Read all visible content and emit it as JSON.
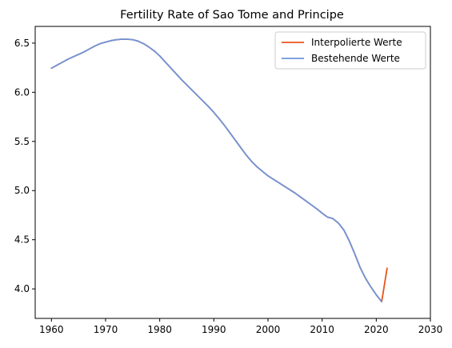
{
  "chart_data": {
    "type": "line",
    "title": "Fertility Rate of Sao Tome and Principe",
    "xlabel": "",
    "ylabel": "",
    "xlim": [
      1957.0,
      2030.0
    ],
    "ylim": [
      3.7,
      6.67
    ],
    "xticks": [
      1960,
      1970,
      1980,
      1990,
      2000,
      2010,
      2020,
      2030
    ],
    "yticks": [
      4.0,
      4.5,
      5.0,
      5.5,
      6.0,
      6.5
    ],
    "grid": false,
    "legend": {
      "position": "top-right",
      "entries": [
        "Interpolierte Werte",
        "Bestehende Werte"
      ]
    },
    "series": [
      {
        "name": "Interpolierte Werte",
        "color": "#e8541c",
        "x": [
          1960,
          1961,
          1962,
          1963,
          1964,
          1965,
          1966,
          1967,
          1968,
          1969,
          1970,
          1971,
          1972,
          1973,
          1974,
          1975,
          1976,
          1977,
          1978,
          1979,
          1980,
          1981,
          1982,
          1983,
          1984,
          1985,
          1986,
          1987,
          1988,
          1989,
          1990,
          1991,
          1992,
          1993,
          1994,
          1995,
          1996,
          1997,
          1998,
          1999,
          2000,
          2001,
          2002,
          2003,
          2004,
          2005,
          2006,
          2007,
          2008,
          2009,
          2010,
          2011,
          2012,
          2013,
          2014,
          2015,
          2016,
          2017,
          2018,
          2019,
          2020,
          2021,
          2022
        ],
        "y": [
          6.245,
          6.275,
          6.305,
          6.335,
          6.36,
          6.385,
          6.41,
          6.44,
          6.47,
          6.495,
          6.51,
          6.525,
          6.535,
          6.54,
          6.54,
          6.535,
          6.52,
          6.495,
          6.46,
          6.42,
          6.37,
          6.31,
          6.25,
          6.19,
          6.13,
          6.075,
          6.02,
          5.965,
          5.91,
          5.855,
          5.795,
          5.73,
          5.66,
          5.585,
          5.51,
          5.435,
          5.36,
          5.295,
          5.24,
          5.195,
          5.15,
          5.115,
          5.08,
          5.045,
          5.01,
          4.975,
          4.935,
          4.895,
          4.855,
          4.815,
          4.77,
          4.73,
          4.715,
          4.67,
          4.6,
          4.49,
          4.36,
          4.22,
          4.11,
          4.02,
          3.94,
          3.87,
          4.21
        ]
      },
      {
        "name": "Bestehende Werte",
        "color": "#6f95db",
        "x": [
          1960,
          1961,
          1962,
          1963,
          1964,
          1965,
          1966,
          1967,
          1968,
          1969,
          1970,
          1971,
          1972,
          1973,
          1974,
          1975,
          1976,
          1977,
          1978,
          1979,
          1980,
          1981,
          1982,
          1983,
          1984,
          1985,
          1986,
          1987,
          1988,
          1989,
          1990,
          1991,
          1992,
          1993,
          1994,
          1995,
          1996,
          1997,
          1998,
          1999,
          2000,
          2001,
          2002,
          2003,
          2004,
          2005,
          2006,
          2007,
          2008,
          2009,
          2010,
          2011,
          2012,
          2013,
          2014,
          2015,
          2016,
          2017,
          2018,
          2019,
          2020,
          2021
        ],
        "y": [
          6.245,
          6.275,
          6.305,
          6.335,
          6.36,
          6.385,
          6.41,
          6.44,
          6.47,
          6.495,
          6.51,
          6.525,
          6.535,
          6.54,
          6.54,
          6.535,
          6.52,
          6.495,
          6.46,
          6.42,
          6.37,
          6.31,
          6.25,
          6.19,
          6.13,
          6.075,
          6.02,
          5.965,
          5.91,
          5.855,
          5.795,
          5.73,
          5.66,
          5.585,
          5.51,
          5.435,
          5.36,
          5.295,
          5.24,
          5.195,
          5.15,
          5.115,
          5.08,
          5.045,
          5.01,
          4.975,
          4.935,
          4.895,
          4.855,
          4.815,
          4.77,
          4.73,
          4.715,
          4.67,
          4.6,
          4.49,
          4.36,
          4.22,
          4.11,
          4.02,
          3.94,
          3.87
        ]
      }
    ]
  }
}
